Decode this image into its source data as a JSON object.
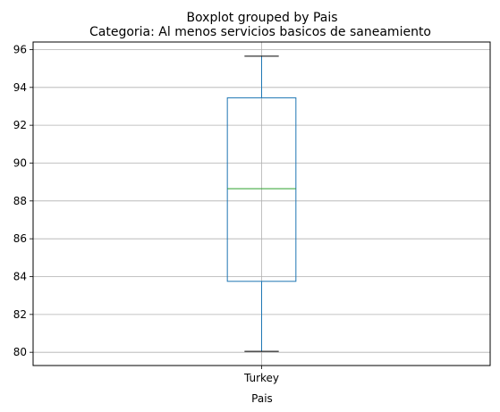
{
  "chart_data": {
    "type": "boxplot",
    "suptitle": "Boxplot grouped by Pais",
    "title": "Categoria: Al menos servicios basicos de saneamiento",
    "xlabel": "Pais",
    "ylabel": "",
    "categories": [
      "Turkey"
    ],
    "boxes": [
      {
        "category": "Turkey",
        "whisker_low": 80.05,
        "q1": 83.75,
        "median": 88.65,
        "q3": 93.45,
        "whisker_high": 95.65
      }
    ],
    "ylim": [
      79.3,
      96.4
    ],
    "yticks": [
      80,
      82,
      84,
      86,
      88,
      90,
      92,
      94,
      96
    ],
    "grid": true,
    "colors": {
      "box": "#1f77b4",
      "median": "#2ca02c",
      "whisker": "#1f77b4",
      "cap": "#000000",
      "grid": "#b0b0b0"
    }
  }
}
